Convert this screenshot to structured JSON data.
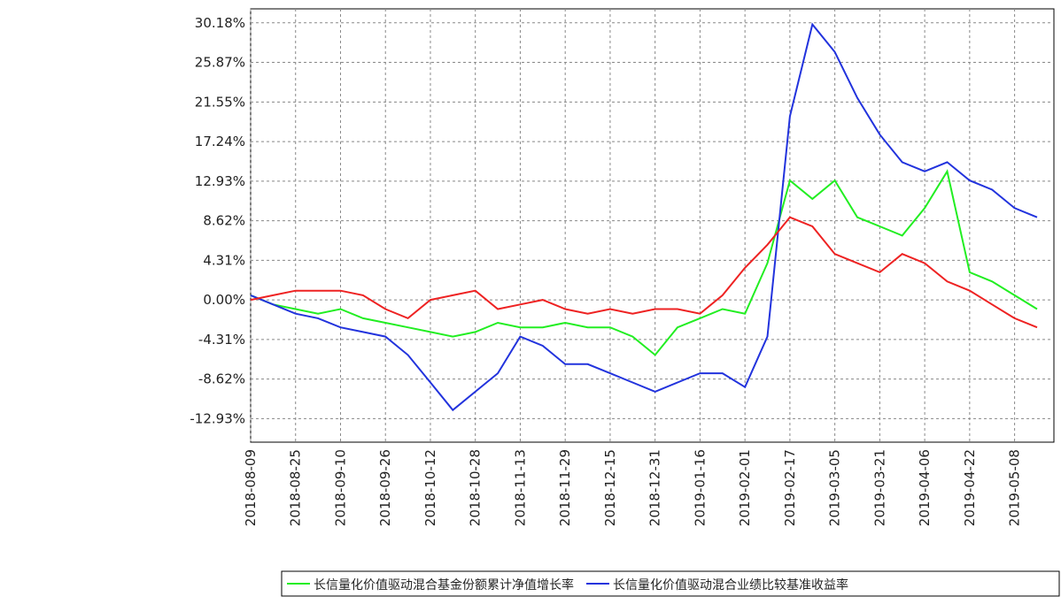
{
  "chart_data": {
    "type": "line",
    "x": [
      "2018-08-09",
      "2018-08-17",
      "2018-08-25",
      "2018-09-02",
      "2018-09-10",
      "2018-09-18",
      "2018-09-26",
      "2018-10-04",
      "2018-10-12",
      "2018-10-20",
      "2018-10-28",
      "2018-11-05",
      "2018-11-13",
      "2018-11-21",
      "2018-11-29",
      "2018-12-07",
      "2018-12-15",
      "2018-12-23",
      "2018-12-31",
      "2019-01-08",
      "2019-01-16",
      "2019-01-24",
      "2019-02-01",
      "2019-02-09",
      "2019-02-17",
      "2019-02-25",
      "2019-03-05",
      "2019-03-13",
      "2019-03-21",
      "2019-03-29",
      "2019-04-06",
      "2019-04-14",
      "2019-04-22",
      "2019-04-30",
      "2019-05-08",
      "2019-05-16"
    ],
    "series": [
      {
        "name": "长信量化价值驱动混合基金份额累计净值增长率",
        "color": "#22ee22",
        "values": [
          0.5,
          -0.5,
          -1,
          -1.5,
          -1,
          -2,
          -2.5,
          -3,
          -3.5,
          -4,
          -3.5,
          -2.5,
          -3,
          -3,
          -2.5,
          -3,
          -3,
          -4,
          -6,
          -3,
          -2,
          -1,
          -1.5,
          4,
          13,
          11,
          13,
          9,
          8,
          7,
          10,
          14,
          3,
          2,
          0.5,
          -1
        ]
      },
      {
        "name": "长信量化价值驱动混合业绩比较基准收益率",
        "color": "#2233dd",
        "values": [
          0.5,
          -0.5,
          -1.5,
          -2,
          -3,
          -3.5,
          -4,
          -6,
          -9,
          -12,
          -10,
          -8,
          -4,
          -5,
          -7,
          -7,
          -8,
          -9,
          -10,
          -9,
          -8,
          -8,
          -9.5,
          -4,
          20,
          30,
          27,
          22,
          18,
          15,
          14,
          15,
          13,
          12,
          10,
          9
        ]
      },
      {
        "color": "#ee2222",
        "values": [
          0,
          0.5,
          1,
          1,
          1,
          0.5,
          -1,
          -2,
          0,
          0.5,
          1,
          -1,
          -0.5,
          0,
          -1,
          -1.5,
          -1,
          -1.5,
          -1,
          -1,
          -1.5,
          0.5,
          3.5,
          6,
          9,
          8,
          5,
          4,
          3,
          5,
          4,
          2,
          1,
          -0.5,
          -2,
          -3
        ]
      }
    ],
    "ylim": [
      -15.5,
      31.7
    ],
    "yticks": [
      {
        "value": 30.18,
        "label": "30.18%"
      },
      {
        "value": 25.87,
        "label": "25.87%"
      },
      {
        "value": 21.55,
        "label": "21.55%"
      },
      {
        "value": 17.24,
        "label": "17.24%"
      },
      {
        "value": 12.93,
        "label": "12.93%"
      },
      {
        "value": 8.62,
        "label": "8.62%"
      },
      {
        "value": 4.31,
        "label": "4.31%"
      },
      {
        "value": 0,
        "label": "0.00%"
      },
      {
        "value": -4.31,
        "label": "-4.31%"
      },
      {
        "value": -8.62,
        "label": "-8.62%"
      },
      {
        "value": -12.93,
        "label": "-12.93%"
      }
    ],
    "xlim": [
      "2018-08-09",
      "2019-05-22"
    ],
    "xticks": [
      "2018-08-09",
      "2018-08-25",
      "2018-09-10",
      "2018-09-26",
      "2018-10-12",
      "2018-10-28",
      "2018-11-13",
      "2018-11-29",
      "2018-12-15",
      "2018-12-31",
      "2019-01-16",
      "2019-02-01",
      "2019-02-17",
      "2019-03-05",
      "2019-03-21",
      "2019-04-06",
      "2019-04-22",
      "2019-05-08"
    ],
    "grid": true
  }
}
